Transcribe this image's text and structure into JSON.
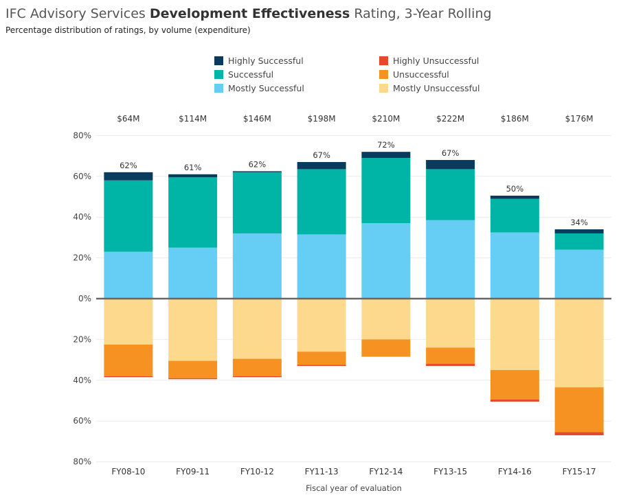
{
  "title_parts": {
    "pre": "IFC Advisory Services ",
    "bold": "Development Effectiveness",
    "post": " Rating, 3-Year Rolling"
  },
  "subtitle": "Percentage distribution of ratings, by volume (expenditure)",
  "colors": {
    "highly_successful": "#0b3b5c",
    "successful": "#00b5a5",
    "mostly_successful": "#66cdf4",
    "highly_unsuccessful": "#e8482a",
    "unsuccessful": "#f59222",
    "mostly_unsuccessful": "#fdd98e"
  },
  "legend": [
    {
      "label": "Highly Successful",
      "key": "highly_successful"
    },
    {
      "label": "Successful",
      "key": "successful"
    },
    {
      "label": "Mostly Successful",
      "key": "mostly_successful"
    },
    {
      "label": "Highly Unsuccessful",
      "key": "highly_unsuccessful"
    },
    {
      "label": "Unsuccessful",
      "key": "unsuccessful"
    },
    {
      "label": "Mostly Unsuccessful",
      "key": "mostly_unsuccessful"
    }
  ],
  "chart_data": {
    "type": "bar",
    "stacked": true,
    "diverging": true,
    "xlabel": "Fiscal year of evaluation",
    "categories": [
      "FY08-10",
      "FY09-11",
      "FY10-12",
      "FY11-13",
      "FY12-14",
      "FY13-15",
      "FY14-16",
      "FY15-17"
    ],
    "volumes": [
      "$64M",
      "$114M",
      "$146M",
      "$198M",
      "$210M",
      "$222M",
      "$186M",
      "$176M"
    ],
    "totals": [
      "62%",
      "61%",
      "62%",
      "67%",
      "72%",
      "67%",
      "50%",
      "34%"
    ],
    "ylim": [
      -80,
      80
    ],
    "y_ticks": [
      80,
      60,
      40,
      20,
      0,
      -20,
      -40,
      -60,
      -80
    ],
    "y_tick_labels": [
      "80%",
      "60%",
      "40%",
      "20%",
      "0%",
      "20%",
      "40%",
      "60%",
      "80%"
    ],
    "grid": true,
    "legend_position": "top",
    "series": [
      {
        "name": "Mostly Successful",
        "key": "mostly_successful",
        "values": [
          23,
          25,
          32,
          31.5,
          37,
          38.5,
          32.5,
          24
        ]
      },
      {
        "name": "Successful",
        "key": "successful",
        "values": [
          35,
          34.5,
          30,
          32,
          32,
          25,
          16.5,
          8
        ]
      },
      {
        "name": "Highly Successful",
        "key": "highly_successful",
        "values": [
          4,
          1.5,
          0.5,
          3.5,
          3,
          4.5,
          1.5,
          2
        ]
      },
      {
        "name": "Mostly Unsuccessful",
        "key": "mostly_unsuccessful",
        "values": [
          -22.5,
          -30.5,
          -29.5,
          -26,
          -20,
          -24,
          -35,
          -43.5
        ]
      },
      {
        "name": "Unsuccessful",
        "key": "unsuccessful",
        "values": [
          -15.5,
          -8.5,
          -8.5,
          -6.5,
          -8.5,
          -8,
          -14.5,
          -22
        ]
      },
      {
        "name": "Highly Unsuccessful",
        "key": "highly_unsuccessful",
        "values": [
          -0.5,
          -0.5,
          -0.5,
          -0.5,
          0,
          -1,
          -1,
          -1.5
        ]
      }
    ]
  }
}
